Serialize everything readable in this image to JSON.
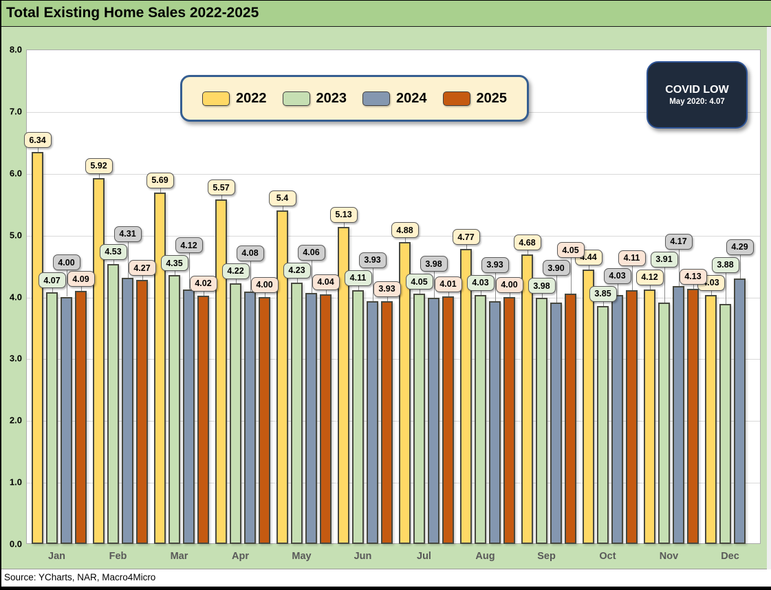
{
  "title": "Total Existing Home Sales 2022-2025",
  "source": "Source: YCharts, NAR, Macro4Micro",
  "callout": {
    "line1": "COVID LOW",
    "line2": "May 2020: 4.07"
  },
  "colors": {
    "title_bar_bg": "#a9d08e",
    "chart_bg": "#c6e0b4",
    "plot_bg": "#ffffff",
    "gridline": "#d9d9d9",
    "legend_bg": "#fdf2d0",
    "legend_border": "#355e91",
    "callout_bg": "#1f2b3c",
    "callout_border": "#2f5597",
    "axis_text": "#595959"
  },
  "chart_data": {
    "type": "bar",
    "title": "Total Existing Home Sales 2022-2025",
    "xlabel": "",
    "ylabel": "",
    "ylim": [
      0,
      8
    ],
    "ytick_step": 1.0,
    "yticks": [
      "0.0",
      "1.0",
      "2.0",
      "3.0",
      "4.0",
      "5.0",
      "6.0",
      "7.0",
      "8.0"
    ],
    "grid": "horizontal",
    "legend_position": "top-center",
    "categories": [
      "Jan",
      "Feb",
      "Mar",
      "Apr",
      "May",
      "Jun",
      "Jul",
      "Aug",
      "Sep",
      "Oct",
      "Nov",
      "Dec"
    ],
    "series": [
      {
        "name": "2022",
        "color": "#ffd966",
        "label_bg": "#fff2cc",
        "values": [
          "6.34",
          "5.92",
          "5.69",
          "5.57",
          "5.4",
          "5.13",
          "4.88",
          "4.77",
          "4.68",
          "4.44",
          "4.12",
          "4.03"
        ]
      },
      {
        "name": "2023",
        "color": "#c6dfb3",
        "label_bg": "#e2efda",
        "values": [
          "4.07",
          "4.53",
          "4.35",
          "4.22",
          "4.23",
          "4.11",
          "4.05",
          "4.03",
          "3.98",
          "3.85",
          "3.91",
          "3.88"
        ]
      },
      {
        "name": "2024",
        "color": "#8497b0",
        "label_bg": "#cfcfcf",
        "values": [
          "4.00",
          "4.31",
          "4.12",
          "4.08",
          "4.06",
          "3.93",
          "3.98",
          "3.93",
          "3.90",
          "4.03",
          "4.17",
          "4.29"
        ]
      },
      {
        "name": "2025",
        "color": "#c55a11",
        "label_bg": "#fbe5d6",
        "values": [
          "4.09",
          "4.27",
          "4.02",
          "4.00",
          "4.04",
          "3.93",
          "4.01",
          "4.00",
          "4.05",
          "4.11",
          "4.13",
          null
        ]
      }
    ]
  }
}
